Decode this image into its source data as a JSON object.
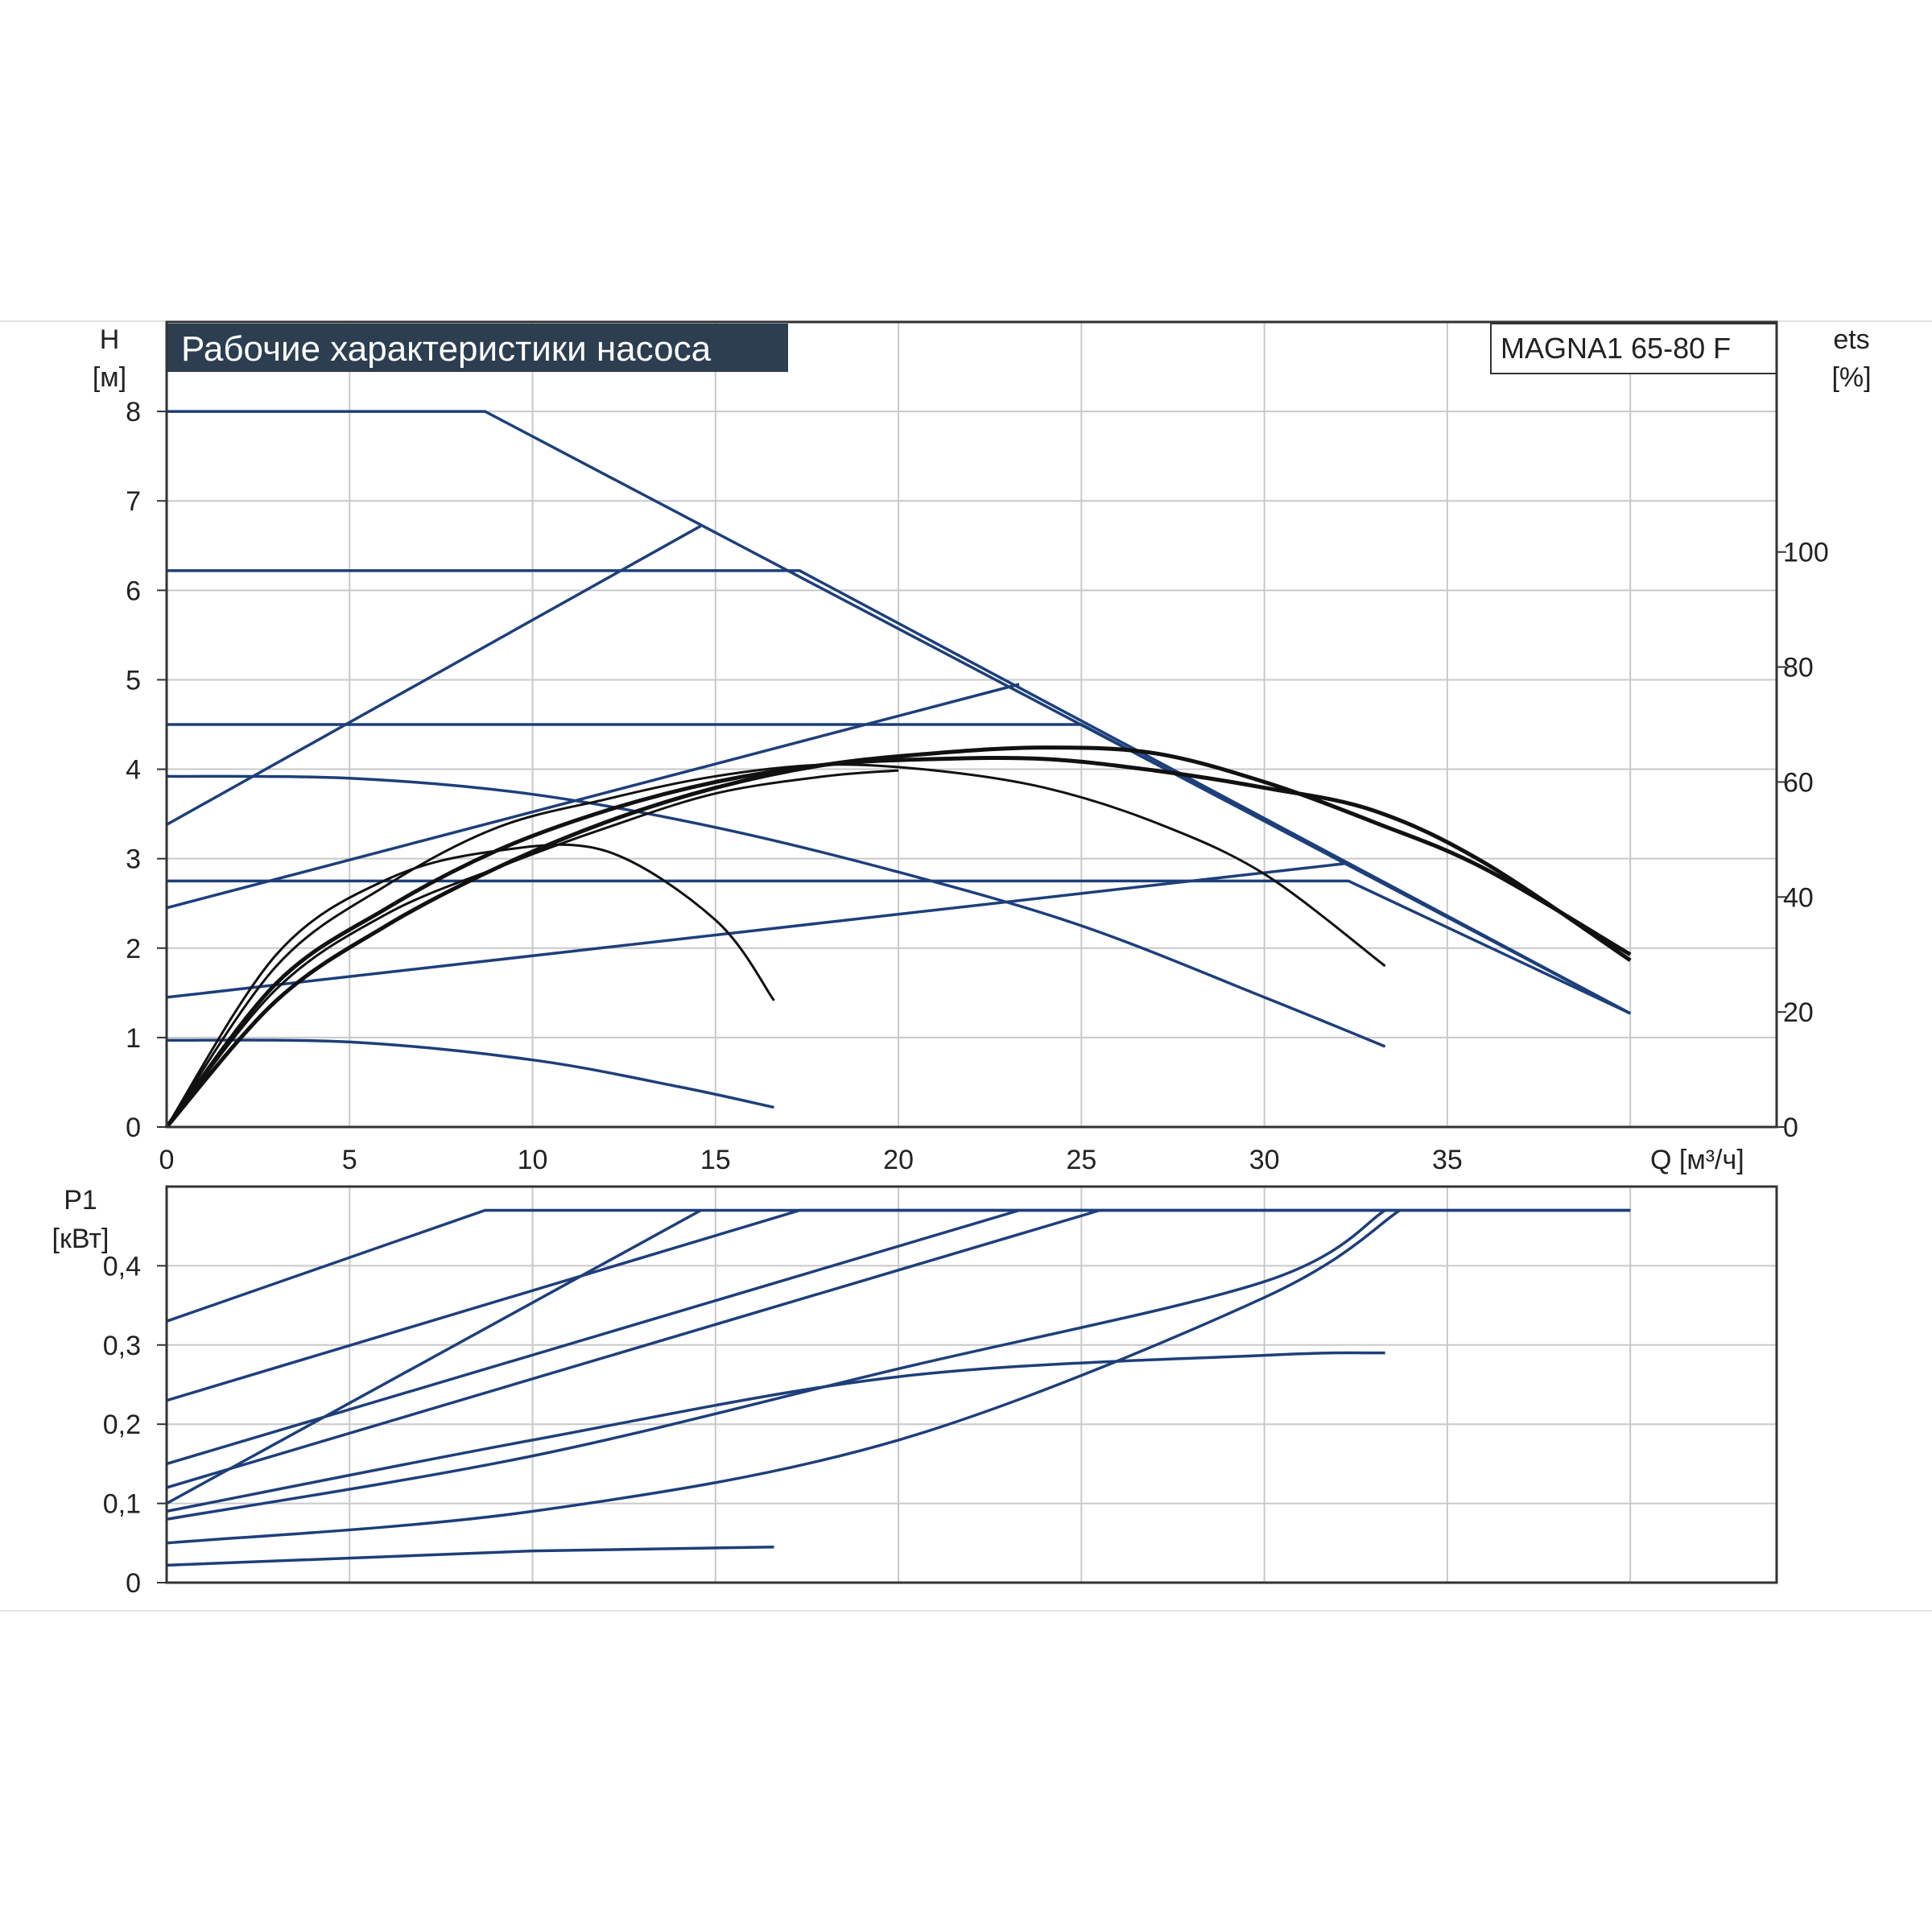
{
  "chart_data": [
    {
      "type": "line",
      "title": "Рабочие характеристики насоса",
      "model": "MAGNA1 65-80 F",
      "xlabel": "Q [м³/ч]",
      "ylabel_left": [
        "H",
        "[м]"
      ],
      "ylabel_right": [
        "ets",
        "[%]"
      ],
      "xlim": [
        0,
        44
      ],
      "ylim_left": [
        0,
        9
      ],
      "ylim_right": [
        0,
        140
      ],
      "xticks": [
        0,
        5,
        10,
        15,
        20,
        25,
        30,
        35
      ],
      "xtick_labels": [
        "0",
        "5",
        "10",
        "15",
        "20",
        "25",
        "30",
        "35"
      ],
      "yticks_left": [
        0,
        1,
        2,
        3,
        4,
        5,
        6,
        7,
        8
      ],
      "ytick_labels_left": [
        "0",
        "1",
        "2",
        "3",
        "4",
        "5",
        "6",
        "7",
        "8"
      ],
      "yticks_right": [
        0,
        20,
        40,
        60,
        80,
        100
      ],
      "ytick_labels_right": [
        "0",
        "20",
        "40",
        "60",
        "80",
        "100"
      ],
      "grid": true,
      "colors": {
        "head": "#1d3f7a",
        "efficiency": "#111111",
        "grid": "#c9c9c9",
        "title_bg": "#2c3e50"
      },
      "series_head": [
        {
          "x": [
            0,
            8.7,
            40
          ],
          "y": [
            8,
            8,
            1.27
          ]
        },
        {
          "x": [
            0,
            17.3,
            40
          ],
          "y": [
            6.22,
            6.22,
            1.27
          ]
        },
        {
          "x": [
            0,
            25,
            40
          ],
          "y": [
            4.5,
            4.5,
            1.27
          ]
        },
        {
          "x": [
            0,
            32.3,
            40
          ],
          "y": [
            2.75,
            2.75,
            1.27
          ]
        },
        {
          "x": [
            0,
            14.6
          ],
          "y": [
            3.38,
            6.72
          ]
        },
        {
          "x": [
            0,
            23.3
          ],
          "y": [
            2.45,
            4.95
          ]
        },
        {
          "x": [
            0,
            32.3
          ],
          "y": [
            1.45,
            2.95
          ]
        },
        {
          "x": [
            0,
            5,
            10,
            15,
            20,
            25,
            30,
            33.3
          ],
          "y": [
            3.92,
            3.9,
            3.72,
            3.35,
            2.85,
            2.25,
            1.45,
            0.9
          ]
        },
        {
          "x": [
            0,
            5,
            10,
            14,
            16.6
          ],
          "y": [
            0.97,
            0.95,
            0.75,
            0.45,
            0.22
          ]
        }
      ],
      "series_efficiency": [
        {
          "x": [
            0,
            3,
            6,
            9,
            12,
            15,
            18,
            21,
            24,
            27,
            30,
            33,
            36,
            40
          ],
          "y": [
            0,
            25,
            38,
            48,
            55,
            60,
            63,
            64,
            64,
            62,
            59,
            55,
            46,
            29
          ]
        },
        {
          "x": [
            0,
            3,
            6,
            9,
            12,
            15,
            18,
            21,
            24,
            27,
            30,
            33,
            36,
            40
          ],
          "y": [
            0,
            22,
            35,
            45,
            53,
            59,
            63,
            65,
            66,
            65,
            60,
            53,
            45,
            30
          ]
        },
        {
          "x": [
            0,
            3,
            6,
            9,
            12,
            15,
            18,
            21,
            24,
            27,
            30,
            33.3
          ],
          "y": [
            0,
            28,
            42,
            52,
            57,
            61,
            63,
            62,
            59,
            53,
            44,
            28
          ]
        },
        {
          "x": [
            0,
            3,
            6,
            9,
            12,
            15,
            16.6
          ],
          "y": [
            0,
            30,
            43,
            48,
            48,
            36,
            22
          ]
        },
        {
          "x": [
            0,
            3,
            6,
            9,
            12,
            15,
            18,
            20
          ],
          "y": [
            0,
            24,
            37,
            45,
            52,
            58,
            61,
            62
          ]
        }
      ]
    },
    {
      "type": "line",
      "ylabel": [
        "P1",
        "[кВт]"
      ],
      "xlim": [
        0,
        44
      ],
      "ylim": [
        0,
        0.5
      ],
      "xticks": [
        0,
        5,
        10,
        15,
        20,
        25,
        30,
        35,
        40
      ],
      "yticks": [
        0,
        0.1,
        0.2,
        0.3,
        0.4
      ],
      "ytick_labels": [
        "0",
        "0,1",
        "0,2",
        "0,3",
        "0,4"
      ],
      "grid": true,
      "series_power": [
        {
          "x": [
            0,
            8.7,
            40
          ],
          "y": [
            0.33,
            0.47,
            0.47
          ]
        },
        {
          "x": [
            0,
            17.3,
            40
          ],
          "y": [
            0.23,
            0.47,
            0.47
          ]
        },
        {
          "x": [
            0,
            14.6
          ],
          "y": [
            0.1,
            0.47
          ]
        },
        {
          "x": [
            0,
            23.3
          ],
          "y": [
            0.15,
            0.47
          ]
        },
        {
          "x": [
            0,
            25.5
          ],
          "y": [
            0.12,
            0.47
          ]
        },
        {
          "x": [
            0,
            10,
            20,
            30,
            33.3
          ],
          "y": [
            0.08,
            0.16,
            0.27,
            0.38,
            0.47
          ]
        },
        {
          "x": [
            0,
            10,
            20,
            30,
            33.7
          ],
          "y": [
            0.05,
            0.09,
            0.18,
            0.36,
            0.47
          ]
        },
        {
          "x": [
            0,
            10,
            20,
            30,
            33.3
          ],
          "y": [
            0.09,
            0.18,
            0.26,
            0.287,
            0.29
          ]
        },
        {
          "x": [
            0,
            10,
            16.6
          ],
          "y": [
            0.022,
            0.04,
            0.045
          ]
        }
      ]
    }
  ]
}
